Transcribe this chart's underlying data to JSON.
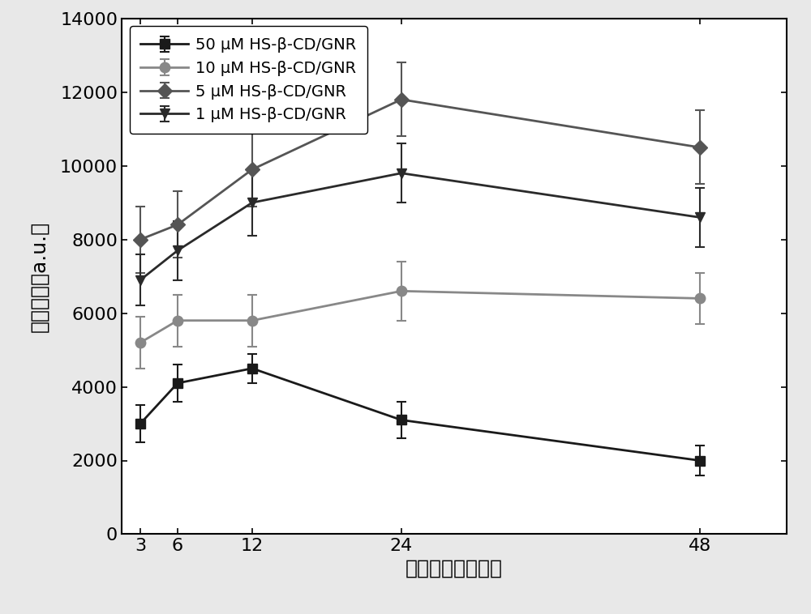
{
  "x": [
    3,
    6,
    12,
    24,
    48
  ],
  "series": [
    {
      "label": "50 μM HS-β-CD/GNR",
      "y": [
        3000,
        4100,
        4500,
        3100,
        2000
      ],
      "yerr": [
        500,
        500,
        400,
        500,
        400
      ],
      "color": "#1a1a1a",
      "marker": "s",
      "markersize": 9
    },
    {
      "label": "10 μM HS-β-CD/GNR",
      "y": [
        5200,
        5800,
        5800,
        6600,
        6400
      ],
      "yerr": [
        700,
        700,
        700,
        800,
        700
      ],
      "color": "#888888",
      "marker": "o",
      "markersize": 9
    },
    {
      "label": "5 μM HS-β-CD/GNR",
      "y": [
        8000,
        8400,
        9900,
        11800,
        10500
      ],
      "yerr": [
        900,
        900,
        1000,
        1000,
        1000
      ],
      "color": "#555555",
      "marker": "D",
      "markersize": 9
    },
    {
      "label": "1 μM HS-β-CD/GNR",
      "y": [
        6900,
        7700,
        9000,
        9800,
        8600
      ],
      "yerr": [
        700,
        800,
        900,
        800,
        800
      ],
      "color": "#2a2a2a",
      "marker": "v",
      "markersize": 9
    }
  ],
  "xlabel": "混合时间（小时）",
  "ylabel": "相对强度（a.u.）",
  "xlim": [
    1.5,
    55
  ],
  "ylim": [
    0,
    14000
  ],
  "yticks": [
    0,
    2000,
    4000,
    6000,
    8000,
    10000,
    12000,
    14000
  ],
  "xticks": [
    3,
    6,
    12,
    24,
    48
  ],
  "label_fontsize": 18,
  "tick_fontsize": 16,
  "legend_fontsize": 14,
  "linewidth": 2.0,
  "capsize": 4,
  "elinewidth": 1.5,
  "capthick": 1.5,
  "background_color": "#ffffff",
  "figure_facecolor": "#e8e8e8"
}
